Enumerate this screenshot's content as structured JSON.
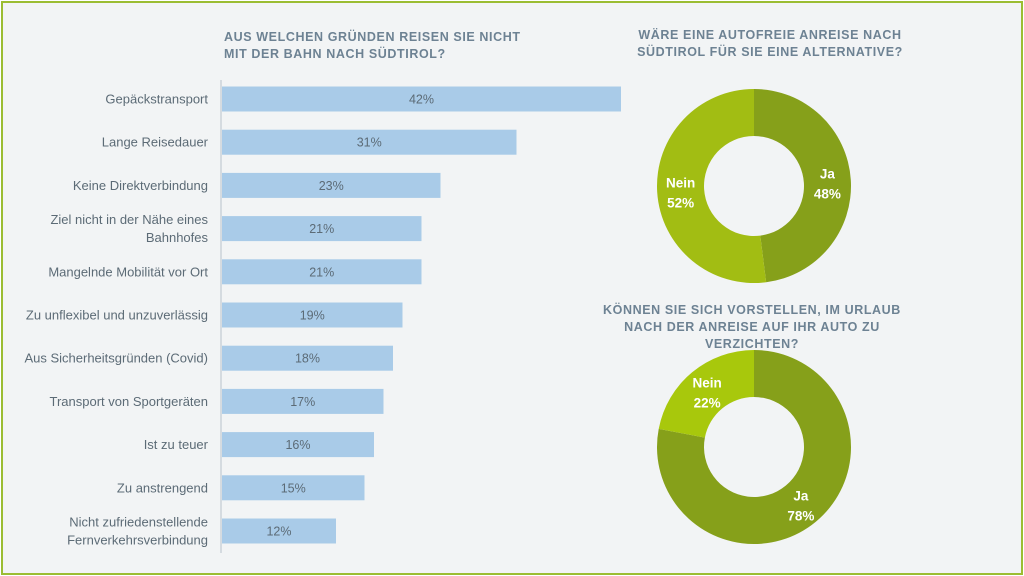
{
  "chart_data": [
    {
      "type": "bar",
      "orientation": "horizontal",
      "title": "AUS WELCHEN GRÜNDEN REISEN SIE NICHT MIT DER BAHN NACH SÜDTIROL?",
      "categories": [
        "Gepäckstransport",
        "Lange Reisedauer",
        "Keine Direktverbindung",
        "Ziel nicht in der Nähe eines Bahnhofes",
        "Mangelnde Mobilität vor Ort",
        "Zu unflexibel und unzuverlässig",
        "Aus Sicherheitsgründen (Covid)",
        "Transport von Sportgeräten",
        "Ist zu teuer",
        "Zu anstrengend",
        "Nicht zufriedenstellende Fernverkehrsverbindung"
      ],
      "values": [
        42,
        31,
        23,
        21,
        21,
        19,
        18,
        17,
        16,
        15,
        12
      ],
      "value_labels": [
        "42%",
        "31%",
        "23%",
        "21%",
        "21%",
        "19%",
        "18%",
        "17%",
        "16%",
        "15%",
        "12%"
      ],
      "xlim": [
        0,
        42
      ],
      "bar_color": "#a9cbe8"
    },
    {
      "type": "pie",
      "style": "donut",
      "title": "WÄRE EINE AUTOFREIE ANREISE NACH SÜDTIROL FÜR SIE EINE ALTERNATIVE?",
      "slices": [
        {
          "label": "Ja",
          "value": 48,
          "value_label": "48%",
          "color": "#86a01a"
        },
        {
          "label": "Nein",
          "value": 52,
          "value_label": "52%",
          "color": "#a2bd13"
        }
      ]
    },
    {
      "type": "pie",
      "style": "donut",
      "title": "KÖNNEN SIE SICH VORSTELLEN, IM URLAUB NACH DER ANREISE AUF IHR AUTO ZU VERZICHTEN?",
      "slices": [
        {
          "label": "Ja",
          "value": 78,
          "value_label": "78%",
          "color": "#86a01a"
        },
        {
          "label": "Nein",
          "value": 22,
          "value_label": "22%",
          "color": "#a8c80c"
        }
      ]
    }
  ],
  "colors": {
    "frame": "#9bbd32",
    "background": "#f2f4f5",
    "title": "#6d8293",
    "axis": "#b8c2ca"
  }
}
